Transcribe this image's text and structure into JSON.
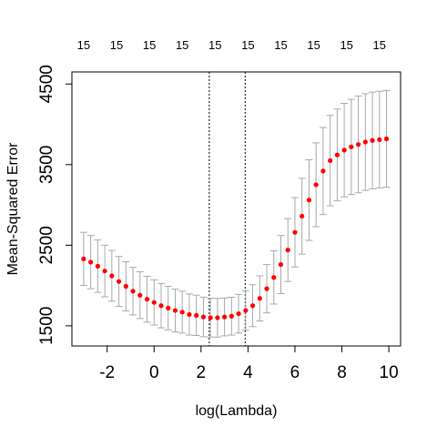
{
  "chart_data": {
    "type": "scatter",
    "title": "",
    "xlabel": "log(Lambda)",
    "ylabel": "Mean-Squared Error",
    "xlim": [
      -3.5,
      10.5
    ],
    "ylim": [
      1250,
      4650
    ],
    "x_ticks": [
      -2,
      0,
      2,
      4,
      6,
      8,
      10
    ],
    "y_ticks": [
      1500,
      2500,
      3500,
      4500
    ],
    "top_axis_labels": [
      "15",
      "15",
      "15",
      "15",
      "15",
      "15",
      "15",
      "15",
      "15",
      "15"
    ],
    "top_axis_positions": [
      -3,
      -1.6,
      -0.2,
      1.2,
      2.6,
      4.0,
      5.4,
      6.8,
      8.2,
      9.6
    ],
    "vlines": [
      2.35,
      3.88
    ],
    "point_color": "#ff0000",
    "errorbar_color": "#a8a8a8",
    "series": [
      {
        "x": [
          -3.0,
          -2.7,
          -2.4,
          -2.1,
          -1.8,
          -1.5,
          -1.2,
          -0.9,
          -0.6,
          -0.3,
          0.0,
          0.3,
          0.6,
          0.9,
          1.2,
          1.5,
          1.8,
          2.1,
          2.4,
          2.7,
          3.0,
          3.3,
          3.6,
          3.9,
          4.2,
          4.5,
          4.8,
          5.1,
          5.4,
          5.7,
          6.0,
          6.3,
          6.6,
          6.9,
          7.2,
          7.5,
          7.8,
          8.1,
          8.4,
          8.7,
          9.0,
          9.3,
          9.6,
          9.9
        ],
        "y": [
          2330,
          2290,
          2240,
          2180,
          2120,
          2050,
          1990,
          1930,
          1880,
          1830,
          1790,
          1750,
          1720,
          1690,
          1670,
          1640,
          1630,
          1610,
          1600,
          1600,
          1610,
          1620,
          1650,
          1690,
          1750,
          1840,
          1960,
          2100,
          2260,
          2440,
          2660,
          2860,
          3060,
          3250,
          3420,
          3550,
          3620,
          3680,
          3720,
          3750,
          3780,
          3800,
          3810,
          3820
        ],
        "err": [
          330,
          330,
          325,
          320,
          315,
          310,
          305,
          295,
          290,
          285,
          280,
          275,
          270,
          265,
          260,
          255,
          250,
          245,
          240,
          240,
          235,
          235,
          240,
          245,
          260,
          280,
          300,
          330,
          360,
          390,
          430,
          470,
          500,
          520,
          540,
          560,
          570,
          580,
          590,
          600,
          600,
          600,
          600,
          600
        ]
      }
    ]
  }
}
